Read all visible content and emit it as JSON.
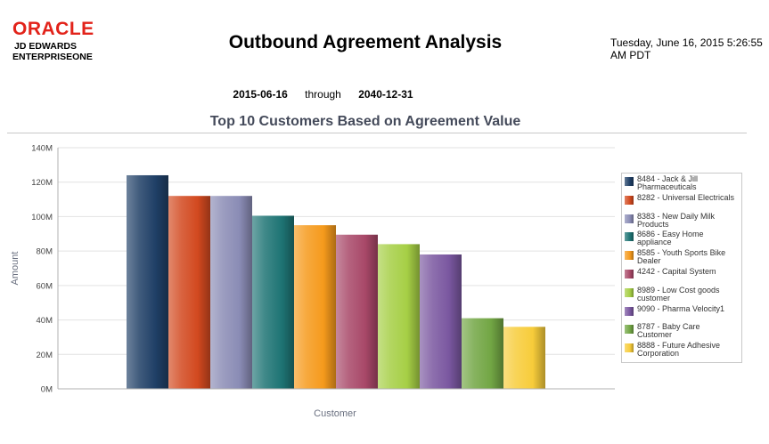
{
  "brand": {
    "oracle": "ORACLE",
    "product_line1": "JD EDWARDS",
    "product_line2": "ENTERPRISEONE"
  },
  "report": {
    "title": "Outbound Agreement Analysis",
    "timestamp": "Tuesday, June 16, 2015 5:26:55 AM PDT",
    "date_from": "2015-06-16",
    "through_label": "through",
    "date_to": "2040-12-31"
  },
  "chart_data": {
    "type": "bar",
    "title": "Top 10 Customers Based on Agreement Value",
    "xlabel": "Customer",
    "ylabel": "Amount",
    "ylim": [
      0,
      140000000
    ],
    "yticks": [
      0,
      20000000,
      40000000,
      60000000,
      80000000,
      100000000,
      120000000,
      140000000
    ],
    "ytick_labels": [
      "0M",
      "20M",
      "40M",
      "60M",
      "80M",
      "100M",
      "120M",
      "140M"
    ],
    "grid": true,
    "legend_position": "right",
    "series": [
      {
        "name": "8484 - Jack & Jill Pharmaceuticals",
        "value": 124000000,
        "color": "#1f3f66"
      },
      {
        "name": "8282 - Universal Electricals",
        "value": 112000000,
        "color": "#d2491f"
      },
      {
        "name": "8383 - New Daily Milk Products",
        "value": 112000000,
        "color": "#8a8cb5"
      },
      {
        "name": "8686 - Easy Home appliance",
        "value": 100500000,
        "color": "#1e7474"
      },
      {
        "name": "8585 - Youth Sports Bike Dealer",
        "value": 95000000,
        "color": "#f59a1c"
      },
      {
        "name": "4242 - Capital System",
        "value": 89500000,
        "color": "#a84868"
      },
      {
        "name": "8989 - Low Cost goods customer",
        "value": 84000000,
        "color": "#a6cf45"
      },
      {
        "name": "9090 - Pharma Velocity1",
        "value": 78000000,
        "color": "#7a57a0"
      },
      {
        "name": "8787 - Baby Care Customer",
        "value": 41000000,
        "color": "#72a644"
      },
      {
        "name": "8888 - Future Adhesive Corporation",
        "value": 36000000,
        "color": "#f7cc3a"
      }
    ]
  }
}
